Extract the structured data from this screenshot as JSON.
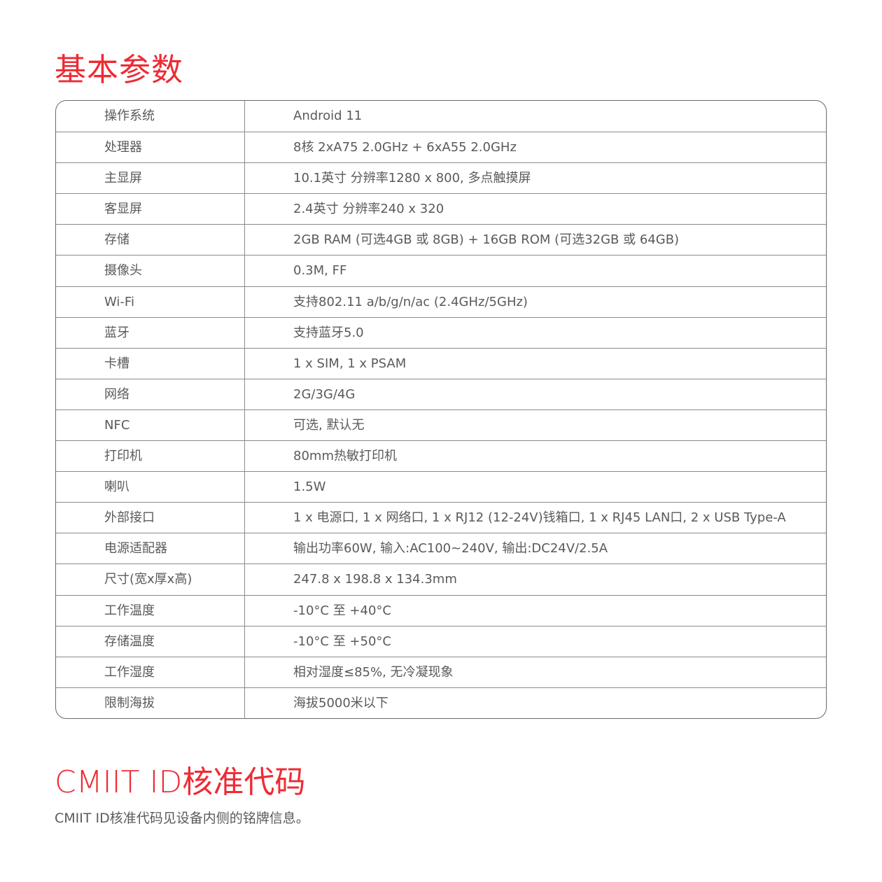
{
  "section1_title": "基本参数",
  "specs": [
    {
      "label": "操作系统",
      "value": "Android 11"
    },
    {
      "label": "处理器",
      "value": "8核 2xA75 2.0GHz + 6xA55 2.0GHz"
    },
    {
      "label": "主显屏",
      "value": "10.1英寸 分辨率1280 x 800, 多点触摸屏"
    },
    {
      "label": "客显屏",
      "value": "2.4英寸 分辨率240 x 320"
    },
    {
      "label": "存储",
      "value": "2GB RAM (可选4GB 或 8GB) + 16GB ROM (可选32GB 或 64GB)"
    },
    {
      "label": "摄像头",
      "value": "0.3M, FF"
    },
    {
      "label": "Wi-Fi",
      "value": "支持802.11 a/b/g/n/ac (2.4GHz/5GHz)"
    },
    {
      "label": "蓝牙",
      "value": "支持蓝牙5.0"
    },
    {
      "label": "卡槽",
      "value": "1 x SIM, 1 x PSAM"
    },
    {
      "label": "网络",
      "value": "2G/3G/4G"
    },
    {
      "label": "NFC",
      "value": "可选, 默认无"
    },
    {
      "label": "打印机",
      "value": "80mm热敏打印机"
    },
    {
      "label": "喇叭",
      "value": "1.5W"
    },
    {
      "label": "外部接口",
      "value": "1 x 电源口, 1 x 网络口, 1 x RJ12 (12-24V)钱箱口, 1 x RJ45 LAN口, 2 x USB Type-A"
    },
    {
      "label": "电源适配器",
      "value": "输出功率60W, 输入:AC100~240V, 输出:DC24V/2.5A"
    },
    {
      "label": "尺寸(宽x厚x高)",
      "value": "247.8  x 198.8 x 134.3mm"
    },
    {
      "label": "工作温度",
      "value": "-10°C 至 +40°C"
    },
    {
      "label": "存储温度",
      "value": "-10°C 至 +50°C"
    },
    {
      "label": "工作湿度",
      "value": "相对湿度≤85%, 无冷凝现象"
    },
    {
      "label": "限制海拔",
      "value": "海拔5000米以下"
    }
  ],
  "section2_title": "CMIIT ID核准代码",
  "section2_text": "CMIIT ID核准代码见设备内侧的铭牌信息。",
  "colors": {
    "accent": "#ee2b34",
    "text": "#5a5a5a",
    "border": "#8a8a8a"
  }
}
